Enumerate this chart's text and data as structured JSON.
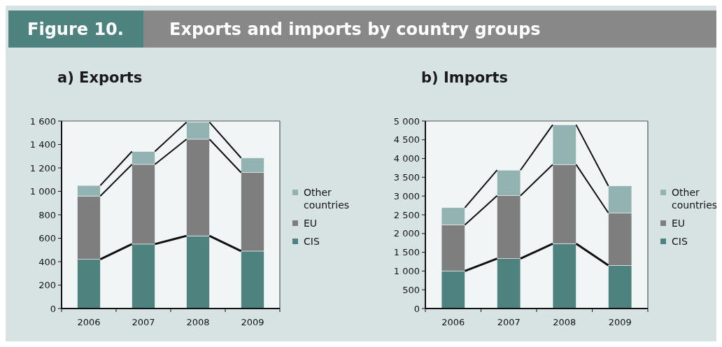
{
  "chart_data": [
    {
      "type": "bar",
      "stacked": true,
      "title": "a) Exports",
      "annotations": [
        "Figure 10.",
        "Exports and imports by country groups"
      ],
      "categories": [
        "2006",
        "2007",
        "2008",
        "2009"
      ],
      "series": [
        {
          "name": "CIS",
          "color": "#4d827e",
          "values": [
            420,
            550,
            620,
            490
          ]
        },
        {
          "name": "EU",
          "color": "#7e7e7e",
          "values": [
            540,
            680,
            825,
            670
          ]
        },
        {
          "name": "Other countries",
          "color": "#92b3b1",
          "values": [
            90,
            110,
            145,
            125
          ]
        }
      ],
      "ylim": [
        0,
        1600
      ],
      "yticks": [
        0,
        200,
        400,
        600,
        800,
        {
          "value": 1000,
          "label": "1 000"
        },
        {
          "value": 1200,
          "label": "1 200"
        },
        {
          "value": 1400,
          "label": "1 400"
        },
        {
          "value": 1600,
          "label": "1 600"
        }
      ],
      "legend": "right"
    },
    {
      "type": "bar",
      "stacked": true,
      "title": "b) Imports",
      "categories": [
        "2006",
        "2007",
        "2008",
        "2009"
      ],
      "series": [
        {
          "name": "CIS",
          "color": "#4d827e",
          "values": [
            1000,
            1330,
            1730,
            1150
          ]
        },
        {
          "name": "EU",
          "color": "#7e7e7e",
          "values": [
            1230,
            1680,
            2110,
            1400
          ]
        },
        {
          "name": "Other countries",
          "color": "#92b3b1",
          "values": [
            460,
            680,
            1060,
            720
          ]
        }
      ],
      "ylim": [
        0,
        5000
      ],
      "yticks": [
        0,
        500,
        {
          "value": 1000,
          "label": "1 000"
        },
        {
          "value": 1500,
          "label": "1 500"
        },
        {
          "value": 2000,
          "label": "2 000"
        },
        {
          "value": 2500,
          "label": "2 500"
        },
        {
          "value": 3000,
          "label": "3 000"
        },
        {
          "value": 3500,
          "label": "3 500"
        },
        {
          "value": 4000,
          "label": "4 000"
        },
        {
          "value": 4500,
          "label": "4 500"
        },
        {
          "value": 5000,
          "label": "5 000"
        }
      ],
      "legend": "right"
    }
  ]
}
